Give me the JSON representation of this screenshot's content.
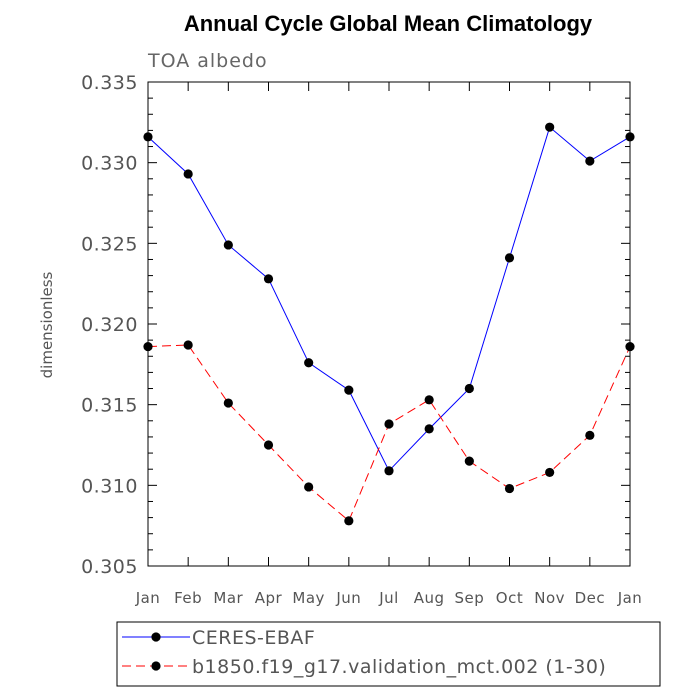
{
  "chart_data": {
    "type": "line",
    "title": "Annual Cycle Global Mean Climatology",
    "subtitle": "TOA albedo",
    "ylabel": "dimensionless",
    "xlabel": "",
    "categories": [
      "Jan",
      "Feb",
      "Mar",
      "Apr",
      "May",
      "Jun",
      "Jul",
      "Aug",
      "Sep",
      "Oct",
      "Nov",
      "Dec",
      "Jan"
    ],
    "ylim": [
      0.305,
      0.335
    ],
    "yticks": [
      "0.305",
      "0.310",
      "0.315",
      "0.320",
      "0.325",
      "0.330",
      "0.335"
    ],
    "yminor_step": 0.001,
    "grid": false,
    "legend_position": "bottom",
    "series": [
      {
        "name": "CERES-EBAF",
        "color": "#0000ff",
        "dash": "solid",
        "marker": "circle",
        "values": [
          0.3316,
          0.3293,
          0.3249,
          0.3228,
          0.3176,
          0.3159,
          0.3109,
          0.3135,
          0.316,
          0.3241,
          0.3322,
          0.3301,
          0.3316
        ]
      },
      {
        "name": "b1850.f19_g17.validation_mct.002 (1-30)",
        "color": "#ff0000",
        "dash": "dashed",
        "marker": "circle",
        "values": [
          0.3186,
          0.3187,
          0.3151,
          0.3125,
          0.3099,
          0.3078,
          0.3138,
          0.3153,
          0.3115,
          0.3098,
          0.3108,
          0.3131,
          0.3186
        ]
      }
    ]
  }
}
